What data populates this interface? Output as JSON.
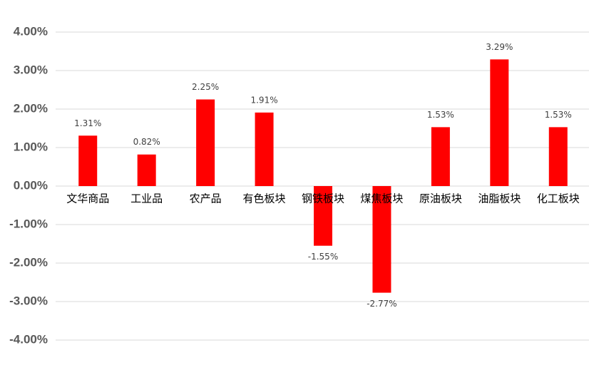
{
  "chart_data": {
    "type": "bar",
    "categories": [
      "文华商品",
      "工业品",
      "农产品",
      "有色板块",
      "钢铁板块",
      "煤焦板块",
      "原油板块",
      "油脂板块",
      "化工板块"
    ],
    "values": [
      1.31,
      0.82,
      2.25,
      1.91,
      -1.55,
      -2.77,
      1.53,
      3.29,
      1.53
    ],
    "value_labels": [
      "1.31%",
      "0.82%",
      "2.25%",
      "1.91%",
      "-1.55%",
      "-2.77%",
      "1.53%",
      "3.29%",
      "1.53%"
    ],
    "color": "#ff0000",
    "ylim": [
      -4,
      4
    ],
    "yticks": [
      {
        "value": -4,
        "label": "-4.00%"
      },
      {
        "value": -3,
        "label": "-3.00%"
      },
      {
        "value": -2,
        "label": "-2.00%"
      },
      {
        "value": -1,
        "label": "-1.00%"
      },
      {
        "value": 0,
        "label": "0.00%"
      },
      {
        "value": 1,
        "label": "1.00%"
      },
      {
        "value": 2,
        "label": "2.00%"
      },
      {
        "value": 3,
        "label": "3.00%"
      },
      {
        "value": 4,
        "label": "4.00%"
      }
    ],
    "grid": true
  }
}
